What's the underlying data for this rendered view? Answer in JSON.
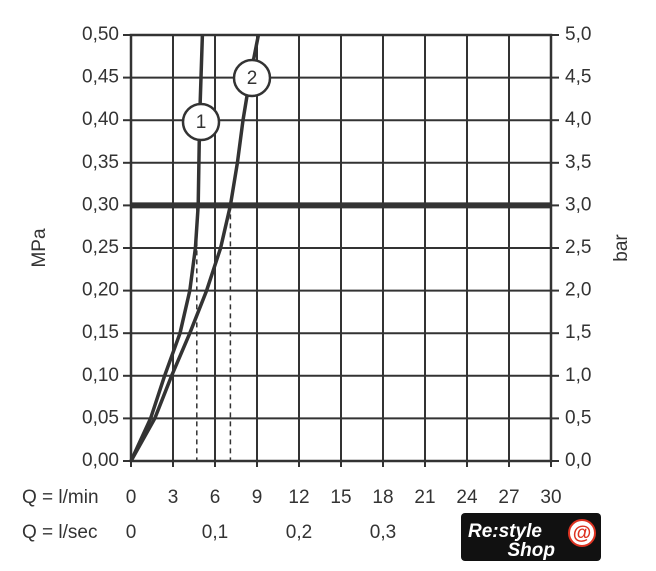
{
  "chart_data": {
    "type": "line",
    "ylabel": "MPa",
    "y2label": "bar",
    "xlabel": "Q = l/min",
    "x2label": "Q = l/sec",
    "xlim": [
      0,
      30
    ],
    "xticks": [
      0,
      3,
      6,
      9,
      12,
      15,
      18,
      21,
      24,
      27,
      30
    ],
    "x2lim": [
      0,
      0.5
    ],
    "x2ticks": [
      0,
      {
        "value": 0.1,
        "label": "0,1"
      },
      {
        "value": 0.2,
        "label": "0,2"
      },
      {
        "value": 0.3,
        "label": "0,3"
      }
    ],
    "ylim": [
      0,
      0.5
    ],
    "yticks": [
      {
        "value": 0,
        "label": "0,00"
      },
      {
        "value": 0.05,
        "label": "0,05"
      },
      {
        "value": 0.1,
        "label": "0,10"
      },
      {
        "value": 0.15,
        "label": "0,15"
      },
      {
        "value": 0.2,
        "label": "0,20"
      },
      {
        "value": 0.25,
        "label": "0,25"
      },
      {
        "value": 0.3,
        "label": "0,30"
      },
      {
        "value": 0.35,
        "label": "0,35"
      },
      {
        "value": 0.4,
        "label": "0,40"
      },
      {
        "value": 0.45,
        "label": "0,45"
      },
      {
        "value": 0.5,
        "label": "0,50"
      }
    ],
    "y2lim": [
      0,
      5
    ],
    "y2ticks": [
      {
        "value": 0,
        "label": "0,0"
      },
      {
        "value": 0.5,
        "label": "0,5"
      },
      {
        "value": 1,
        "label": "1,0"
      },
      {
        "value": 1.5,
        "label": "1,5"
      },
      {
        "value": 2,
        "label": "2,0"
      },
      {
        "value": 2.5,
        "label": "2,5"
      },
      {
        "value": 3,
        "label": "3,0"
      },
      {
        "value": 3.5,
        "label": "3,5"
      },
      {
        "value": 4,
        "label": "4,0"
      },
      {
        "value": 4.5,
        "label": "4,5"
      },
      {
        "value": 5,
        "label": "5,0"
      }
    ],
    "grid": true,
    "reference_line": 0.3,
    "dashed_x": [
      4.7,
      7.1
    ],
    "series": [
      {
        "name": "1",
        "color": "#333333",
        "x": [
          0,
          1.4,
          2.4,
          3.5,
          4.2,
          4.6,
          4.8,
          4.9,
          5.0,
          5.1
        ],
        "values": [
          0,
          0.05,
          0.1,
          0.15,
          0.2,
          0.25,
          0.3,
          0.4,
          0.45,
          0.5
        ]
      },
      {
        "name": "2",
        "color": "#333333",
        "x": [
          0,
          1.7,
          2.9,
          4.2,
          5.4,
          6.4,
          7.1,
          7.6,
          8.0,
          8.5,
          9.1
        ],
        "values": [
          0,
          0.05,
          0.1,
          0.15,
          0.2,
          0.25,
          0.3,
          0.35,
          0.4,
          0.45,
          0.5
        ]
      }
    ],
    "watermark": {
      "text": "Re:style",
      "symbol": "@",
      "subtext": "Shop"
    }
  }
}
